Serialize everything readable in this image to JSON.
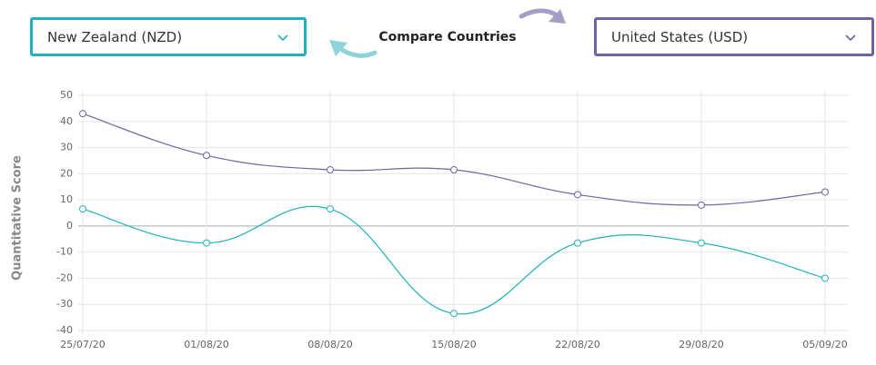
{
  "controls": {
    "compare_label": "Compare Countries"
  },
  "chart_data": {
    "type": "line",
    "y_label": "Quantitative Score",
    "categories": [
      "25/07/20",
      "01/08/20",
      "08/08/20",
      "15/08/20",
      "22/08/20",
      "29/08/20",
      "05/09/20"
    ],
    "series": [
      {
        "name": "New Zealand (NZD)",
        "color": "#1fb0bd",
        "values": [
          6.5,
          -6.5,
          6.5,
          -33.5,
          -6.5,
          -6.5,
          -20
        ]
      },
      {
        "name": "United States (USD)",
        "color": "#6f63a3",
        "values": [
          43,
          27,
          21.5,
          21.5,
          12,
          8,
          13
        ]
      }
    ],
    "ylim": [
      -40,
      50
    ],
    "yticks": [
      50,
      40,
      30,
      20,
      10,
      0,
      -10,
      -20,
      -30,
      -40
    ],
    "grid": true
  }
}
